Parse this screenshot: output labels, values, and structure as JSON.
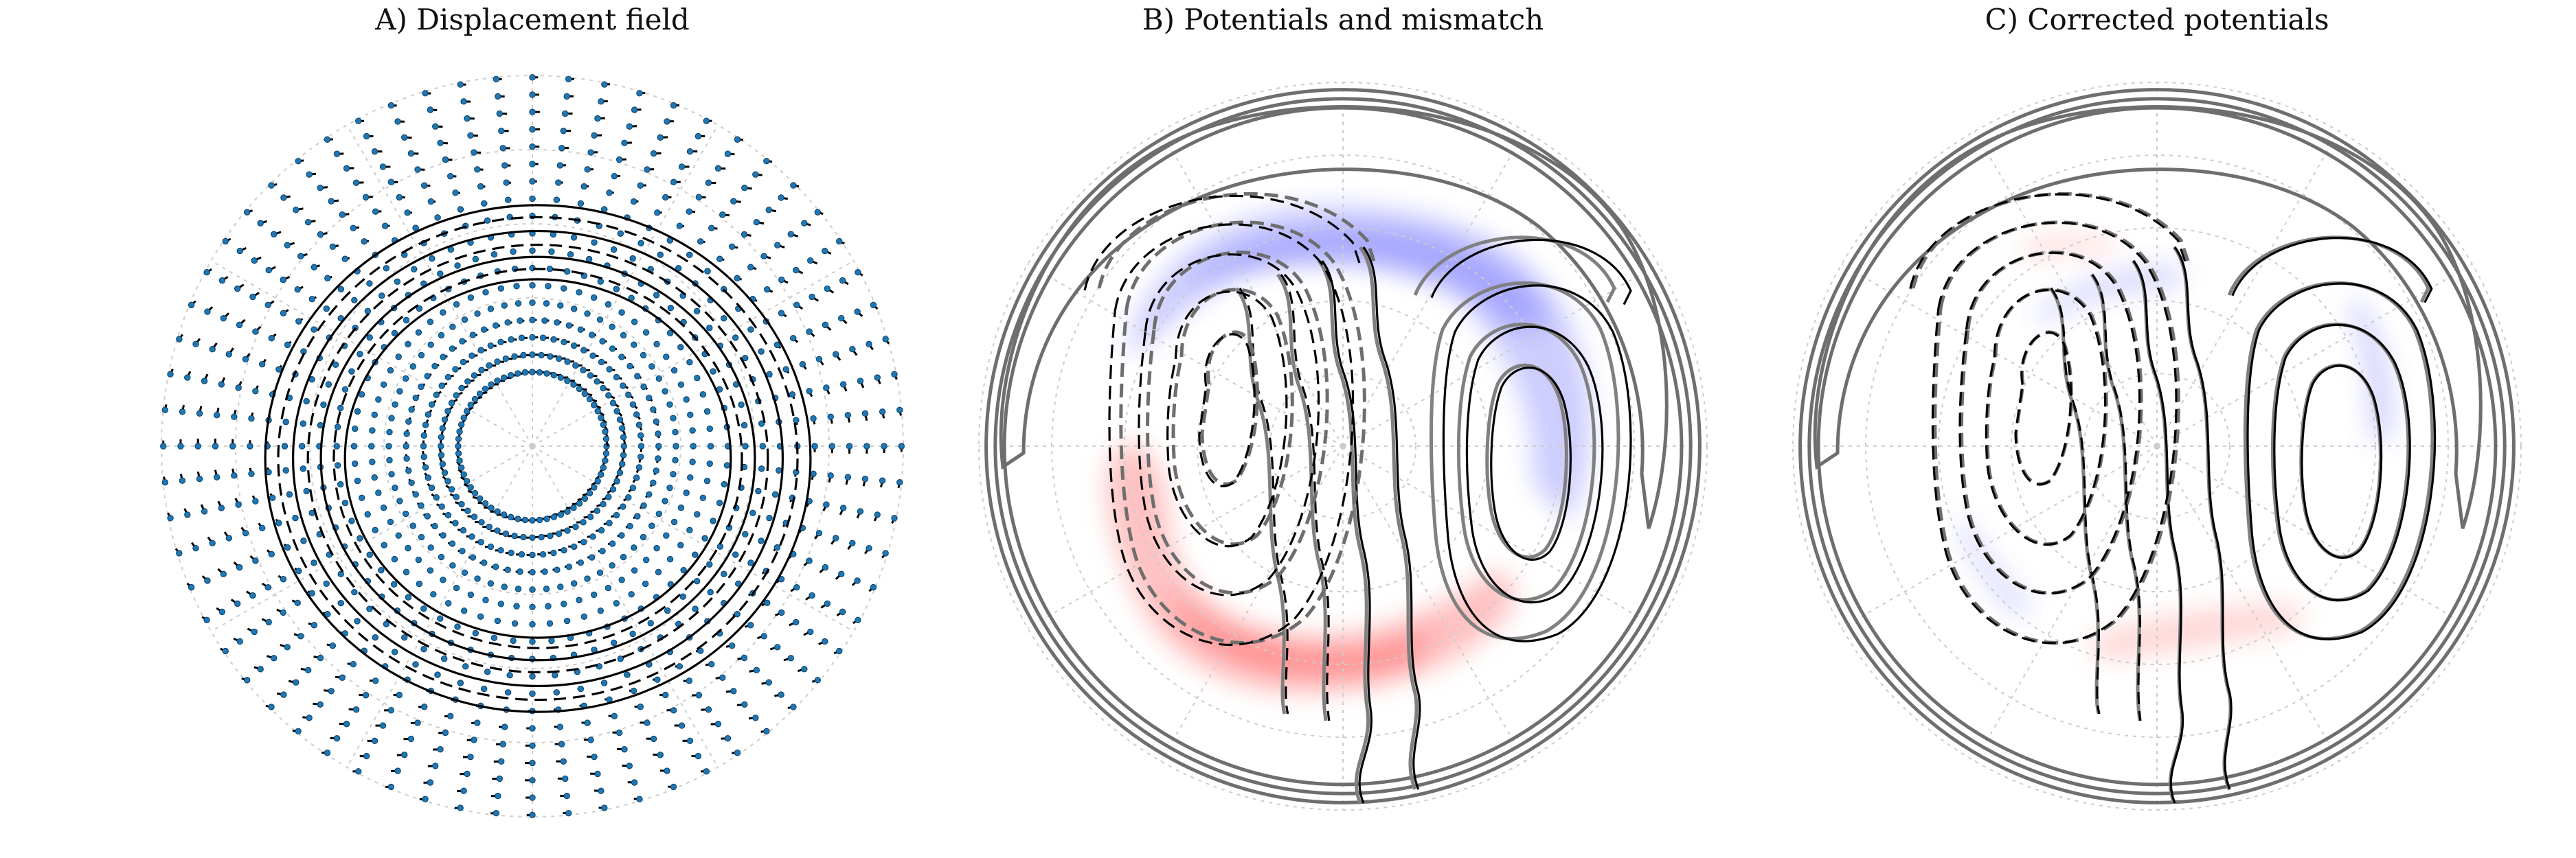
{
  "figure": {
    "panels": [
      {
        "id": "A",
        "title": "A) Displacement field"
      },
      {
        "id": "B",
        "title": "B) Potentials and mismatch"
      },
      {
        "id": "C",
        "title": "C) Corrected potentials"
      }
    ]
  },
  "chart_data": [
    {
      "type": "other",
      "panel": "A",
      "title": "A) Displacement field",
      "description_visible": "polar grid with radial vector dots and concentric black solid and dashed contours",
      "polar_grid": {
        "rings": 5,
        "spokes": 12,
        "style": "dotted",
        "color": "#cccccc"
      },
      "vector_field": {
        "marker_color": "#1f77b4",
        "arrow_color": "#000000",
        "radial_spokes": 64,
        "rings": 18,
        "inner_radius_fraction": 0.2
      },
      "contours": {
        "solid_color": "#000000",
        "dashed_color": "#000000"
      }
    },
    {
      "type": "other",
      "panel": "B",
      "title": "B) Potentials and mismatch",
      "polar_grid": {
        "rings": 5,
        "spokes": 12,
        "style": "dotted",
        "color": "#cccccc"
      },
      "contours": {
        "measured_color": "#000000",
        "model_color": "#808080",
        "positive_style": "solid",
        "negative_style": "dashed"
      },
      "mismatch_fill": {
        "positive_color": "#ff4d4d",
        "negative_color": "#4d4dff"
      }
    },
    {
      "type": "other",
      "panel": "C",
      "title": "C) Corrected potentials",
      "polar_grid": {
        "rings": 5,
        "spokes": 12,
        "style": "dotted",
        "color": "#cccccc"
      },
      "contours": {
        "measured_color": "#000000",
        "model_color": "#808080",
        "positive_style": "solid",
        "negative_style": "dashed"
      },
      "mismatch_fill": {
        "positive_color": "#ff4d4d",
        "negative_color": "#4d4dff"
      }
    }
  ]
}
